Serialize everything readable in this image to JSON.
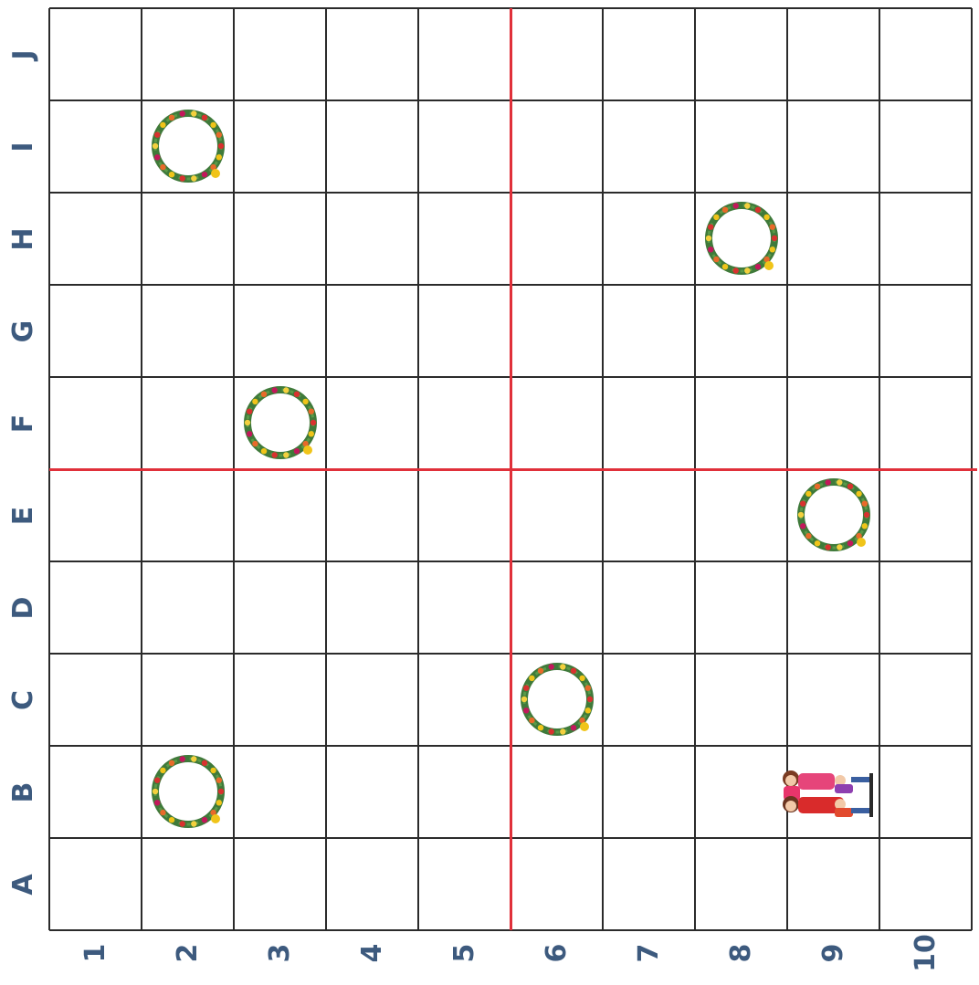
{
  "board": {
    "rows": [
      "A",
      "B",
      "C",
      "D",
      "E",
      "F",
      "G",
      "H",
      "I",
      "J"
    ],
    "cols": [
      "1",
      "2",
      "3",
      "4",
      "5",
      "6",
      "7",
      "8",
      "9",
      "10"
    ],
    "divider_after_col": 5,
    "divider_after_row": 5,
    "colors": {
      "grid": "#2b2b2b",
      "divider": "#e0303a",
      "label": "#3d5a7e"
    }
  },
  "pieces": [
    {
      "type": "wreath-icon",
      "row": "I",
      "col": "2"
    },
    {
      "type": "wreath-icon",
      "row": "H",
      "col": "8"
    },
    {
      "type": "wreath-icon",
      "row": "F",
      "col": "3"
    },
    {
      "type": "wreath-icon",
      "row": "E",
      "col": "9"
    },
    {
      "type": "wreath-icon",
      "row": "C",
      "col": "6"
    },
    {
      "type": "wreath-icon",
      "row": "B",
      "col": "2"
    },
    {
      "type": "family-icon",
      "row": "B",
      "col": "9"
    }
  ]
}
